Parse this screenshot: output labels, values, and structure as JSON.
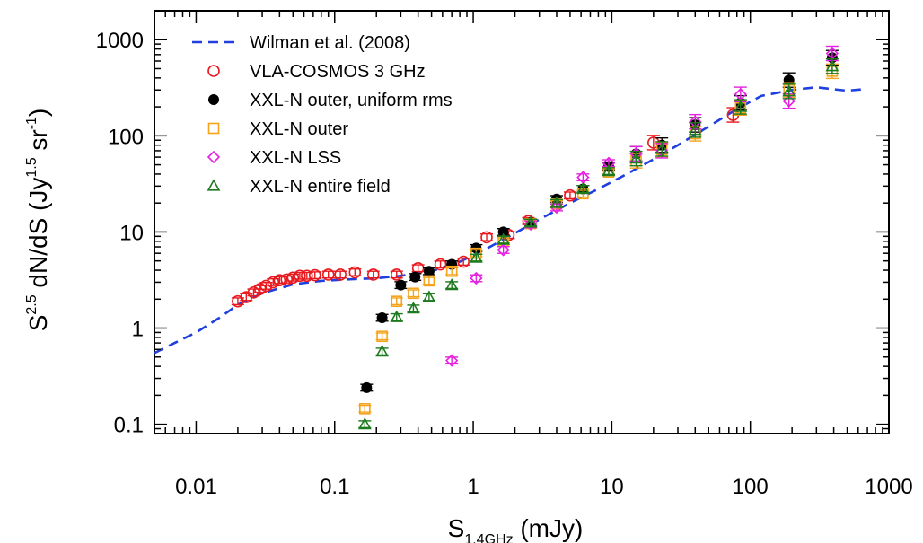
{
  "chart_data": {
    "type": "scatter",
    "x_scale": "log",
    "y_scale": "log",
    "xlim": [
      0.005,
      1000
    ],
    "ylim": [
      0.08,
      2000
    ],
    "x_ticks": [
      {
        "value": 0.01,
        "label": "0.01"
      },
      {
        "value": 0.1,
        "label": "0.1"
      },
      {
        "value": 1,
        "label": "1"
      },
      {
        "value": 10,
        "label": "10"
      },
      {
        "value": 100,
        "label": "100"
      },
      {
        "value": 1000,
        "label": "1000"
      }
    ],
    "y_ticks": [
      {
        "value": 0.1,
        "label": "0.1"
      },
      {
        "value": 1,
        "label": "1"
      },
      {
        "value": 10,
        "label": "10"
      },
      {
        "value": 100,
        "label": "100"
      },
      {
        "value": 1000,
        "label": "1000"
      }
    ],
    "xlabel": {
      "main": "S",
      "sub": "1.4GHz",
      "rest": " (mJy)"
    },
    "ylabel": {
      "base": "S",
      "sup1": "2.5",
      "mid": " dN/dS  (Jy",
      "sup2": "1.5",
      "mid2": " sr",
      "sup3": "-1",
      "end": ")"
    },
    "legend_position": "top-left",
    "series": [
      {
        "name": "Wilman et al. (2008)",
        "kind": "line",
        "color": "#1f3fe0",
        "x": [
          0.005,
          0.007,
          0.01,
          0.015,
          0.02,
          0.03,
          0.05,
          0.08,
          0.12,
          0.2,
          0.3,
          0.5,
          0.8,
          1.2,
          2,
          3,
          5,
          8,
          12,
          20,
          30,
          50,
          80,
          120,
          200,
          300,
          400,
          500,
          650
        ],
        "y": [
          0.55,
          0.7,
          0.9,
          1.3,
          1.75,
          2.3,
          2.85,
          3.1,
          3.2,
          3.3,
          3.5,
          3.9,
          4.9,
          6.5,
          9.7,
          13.5,
          20,
          28,
          38,
          57,
          80,
          125,
          190,
          260,
          300,
          320,
          305,
          295,
          305
        ]
      },
      {
        "name": "VLA-COSMOS 3 GHz",
        "kind": "marker",
        "marker": "circle",
        "color": "#e8191f",
        "x": [
          0.02,
          0.023,
          0.026,
          0.029,
          0.032,
          0.036,
          0.04,
          0.045,
          0.05,
          0.056,
          0.063,
          0.072,
          0.09,
          0.11,
          0.14,
          0.19,
          0.28,
          0.4,
          0.58,
          0.85,
          1.25,
          1.8,
          2.5,
          5,
          20,
          75
        ],
        "y": [
          1.9,
          2.1,
          2.35,
          2.55,
          2.75,
          3.0,
          3.15,
          3.2,
          3.35,
          3.5,
          3.5,
          3.55,
          3.6,
          3.6,
          3.8,
          3.6,
          3.6,
          4.2,
          4.6,
          4.9,
          8.8,
          9.3,
          13,
          24,
          85,
          165
        ]
      },
      {
        "name": "XXL-N outer, uniform rms",
        "kind": "marker",
        "marker": "filled-circle",
        "color": "#000000",
        "x": [
          0.17,
          0.22,
          0.3,
          0.38,
          0.48,
          0.7,
          1.05,
          1.65,
          2.6,
          4,
          6.2,
          9.5,
          15,
          23,
          40,
          85,
          190,
          390
        ],
        "y": [
          0.24,
          1.28,
          2.8,
          3.4,
          3.9,
          4.6,
          6.8,
          10,
          12.5,
          22,
          28,
          48,
          65,
          80,
          130,
          220,
          380,
          650
        ]
      },
      {
        "name": "XXL-N outer",
        "kind": "marker",
        "marker": "square",
        "color": "#f4a31b",
        "x": [
          0.165,
          0.22,
          0.28,
          0.37,
          0.48,
          0.7,
          1.05,
          1.65,
          2.6,
          4,
          6.2,
          9.5,
          15,
          23,
          40,
          85,
          190,
          390
        ],
        "y": [
          0.145,
          0.82,
          1.9,
          2.3,
          3.1,
          3.9,
          6.0,
          8.0,
          12.2,
          19.5,
          25,
          42,
          55,
          72,
          105,
          195,
          300,
          470
        ]
      },
      {
        "name": "XXL-N LSS",
        "kind": "marker",
        "marker": "diamond",
        "color": "#e61fe0",
        "x": [
          0.7,
          1.05,
          1.65,
          2.6,
          4,
          6.2,
          9.5,
          15,
          23,
          40,
          85,
          190,
          390
        ],
        "y": [
          0.46,
          3.3,
          6.5,
          12,
          18,
          37,
          52,
          65,
          70,
          140,
          270,
          230,
          720
        ]
      },
      {
        "name": "XXL-N entire field",
        "kind": "marker",
        "marker": "triangle",
        "color": "#1e7a1e",
        "x": [
          0.165,
          0.22,
          0.28,
          0.37,
          0.48,
          0.7,
          1.05,
          1.65,
          2.6,
          4,
          6.2,
          9.5,
          15,
          23,
          40,
          85,
          190,
          390
        ],
        "y": [
          0.1,
          0.57,
          1.3,
          1.6,
          2.1,
          2.8,
          5.4,
          8.3,
          12.5,
          20,
          28,
          43,
          58,
          73,
          115,
          200,
          290,
          530
        ]
      }
    ]
  }
}
